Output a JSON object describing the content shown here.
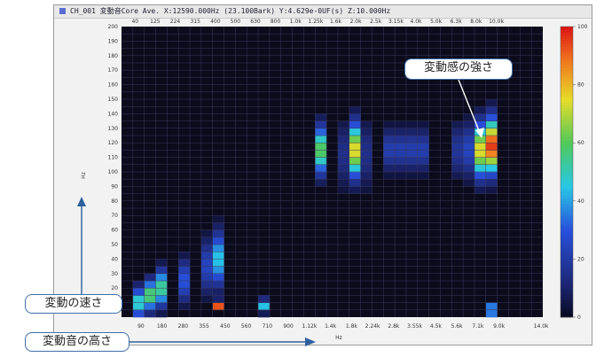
{
  "window": {
    "title": "CH_001 変動音Core Ave. X:12590.000Hz (23.100Bark) Y:4.629e-0UF(s) Z:10.000Hz"
  },
  "callouts": {
    "strength": "変動感の強さ",
    "speed": "変動の速さ",
    "pitch": "変動音の高さ"
  },
  "colors": {
    "background": "#0b0b1c",
    "grid": "#3a3a5a",
    "arrow": "#2f5f9e"
  },
  "chart_data": {
    "type": "heatmap",
    "title": "",
    "xlabel": "Hz",
    "ylabel": "Hz",
    "x_top_ticks": [
      "40",
      "125",
      "224",
      "315",
      "400",
      "500",
      "630",
      "800",
      "1.0k",
      "1.25k",
      "1.6k",
      "2.0k",
      "2.5k",
      "3.15k",
      "4.0k",
      "5.0k",
      "6.3k",
      "8.0k",
      "10.0k"
    ],
    "x_bottom_ticks": [
      "90",
      "180",
      "280",
      "355",
      "450",
      "560",
      "710",
      "900",
      "1.12k",
      "1.4k",
      "1.8k",
      "2.24k",
      "2.8k",
      "3.55k",
      "4.5k",
      "5.6k",
      "7.1k",
      "9.0k",
      "",
      "14.0k"
    ],
    "y_ticks": [
      200,
      190,
      180,
      170,
      160,
      150,
      140,
      130,
      120,
      110,
      100,
      90,
      80,
      70,
      60,
      50,
      40,
      30,
      20,
      10
    ],
    "ylim": [
      0,
      200
    ],
    "colorbar": {
      "ticks": [
        100,
        80,
        60,
        40,
        20,
        0
      ],
      "range": [
        0,
        100
      ]
    },
    "x_columns": [
      "40",
      "90",
      "125",
      "180",
      "224",
      "280",
      "315",
      "355",
      "400",
      "450",
      "500",
      "560",
      "630",
      "710",
      "800",
      "900",
      "1.0k",
      "1.12k",
      "1.25k",
      "1.4k",
      "1.6k",
      "1.8k",
      "2.0k",
      "2.24k",
      "2.5k",
      "2.8k",
      "3.15k",
      "3.55k",
      "4.0k",
      "4.5k",
      "5.0k",
      "5.6k",
      "6.3k",
      "7.1k",
      "8.0k",
      "9.0k",
      "10.0k"
    ],
    "hotspots": [
      {
        "x": "1.12k",
        "y_center": 115,
        "spread": 16,
        "peak": 60
      },
      {
        "x": "1.6k",
        "y_center": 115,
        "spread": 18,
        "peak": 75
      },
      {
        "x": "1.4k",
        "y_center": 112,
        "spread": 22,
        "peak": 15
      },
      {
        "x": "1.8k",
        "y_center": 112,
        "spread": 22,
        "peak": 15
      },
      {
        "x": "2.24k",
        "y_center": 115,
        "spread": 14,
        "peak": 22
      },
      {
        "x": "2.5k",
        "y_center": 115,
        "spread": 14,
        "peak": 22
      },
      {
        "x": "2.8k",
        "y_center": 115,
        "spread": 14,
        "peak": 22
      },
      {
        "x": "3.15k",
        "y_center": 115,
        "spread": 14,
        "peak": 22
      },
      {
        "x": "5.6k",
        "y_center": 115,
        "spread": 18,
        "peak": 75
      },
      {
        "x": "6.3k",
        "y_center": 118,
        "spread": 18,
        "peak": 95
      },
      {
        "x": "4.5k",
        "y_center": 115,
        "spread": 18,
        "peak": 18
      },
      {
        "x": "5.0k",
        "y_center": 115,
        "spread": 18,
        "peak": 25
      },
      {
        "x": "400",
        "y_center": 40,
        "spread": 18,
        "peak": 45
      },
      {
        "x": "355",
        "y_center": 35,
        "spread": 18,
        "peak": 25
      },
      {
        "x": "280",
        "y_center": 25,
        "spread": 14,
        "peak": 30
      },
      {
        "x": "180",
        "y_center": 20,
        "spread": 12,
        "peak": 55
      },
      {
        "x": "125",
        "y_center": 15,
        "spread": 10,
        "peak": 60
      },
      {
        "x": "90",
        "y_center": 10,
        "spread": 10,
        "peak": 50
      },
      {
        "x": "400",
        "y_center": 8,
        "spread": 3,
        "peak": 95
      },
      {
        "x": "630",
        "y_center": 8,
        "spread": 4,
        "peak": 45
      },
      {
        "x": "6.3k",
        "y_center": 5,
        "spread": 3,
        "peak": 70
      }
    ]
  }
}
